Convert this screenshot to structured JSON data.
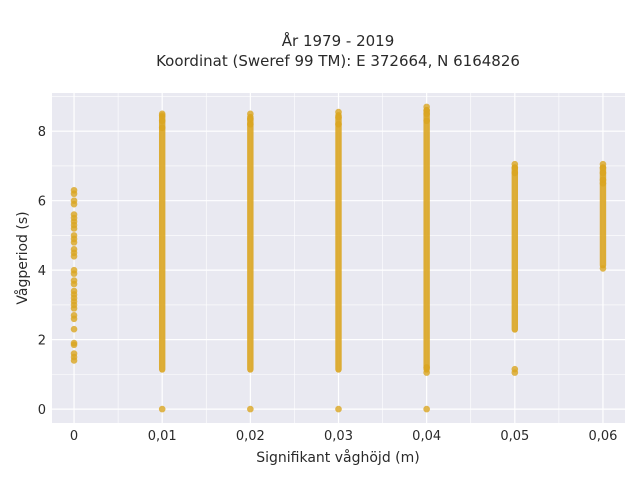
{
  "chart_data": {
    "type": "scatter",
    "title_line1": "År 1979 - 2019",
    "title_line2": "Koordinat (Sweref 99 TM): E 372664, N 6164826",
    "xlabel": "Signifikant våghöjd (m)",
    "ylabel": "Vågperiod (s)",
    "xlim": [
      -0.0025,
      0.0625
    ],
    "ylim": [
      -0.4,
      9.1
    ],
    "x_ticks": [
      {
        "value": 0,
        "label": "0"
      },
      {
        "value": 0.01,
        "label": "0,01"
      },
      {
        "value": 0.02,
        "label": "0,02"
      },
      {
        "value": 0.03,
        "label": "0,03"
      },
      {
        "value": 0.04,
        "label": "0,04"
      },
      {
        "value": 0.05,
        "label": "0,05"
      },
      {
        "value": 0.06,
        "label": "0,06"
      }
    ],
    "y_ticks": [
      {
        "value": 0,
        "label": "0"
      },
      {
        "value": 2,
        "label": "2"
      },
      {
        "value": 4,
        "label": "4"
      },
      {
        "value": 6,
        "label": "6"
      },
      {
        "value": 8,
        "label": "8"
      }
    ],
    "grid": true,
    "marker_color": "#DAA520",
    "background_color": "#E9E9F1",
    "clusters": [
      {
        "x": 0,
        "y_min": 1.4,
        "y_max": 6.3,
        "dense": false,
        "points": [
          1.4,
          1.5,
          1.6,
          1.85,
          1.9,
          2.3,
          2.6,
          2.7,
          2.9,
          3.0,
          3.1,
          3.2,
          3.3,
          3.4,
          3.6,
          3.7,
          3.9,
          4.0,
          4.4,
          4.5,
          4.6,
          4.8,
          4.9,
          5.0,
          5.2,
          5.3,
          5.4,
          5.5,
          5.6,
          5.9,
          6.0,
          6.2,
          6.3
        ]
      },
      {
        "x": 0.01,
        "y_min": 1.05,
        "y_max": 8.5,
        "dense": true,
        "points": [
          0,
          8.1,
          8.3,
          8.45,
          8.5
        ]
      },
      {
        "x": 0.02,
        "y_min": 1.05,
        "y_max": 8.5,
        "dense": true,
        "points": [
          0,
          8.2,
          8.35,
          8.5
        ]
      },
      {
        "x": 0.03,
        "y_min": 1.05,
        "y_max": 8.55,
        "dense": true,
        "points": [
          0,
          8.2,
          8.4,
          8.55
        ]
      },
      {
        "x": 0.04,
        "y_min": 1.05,
        "y_max": 8.7,
        "dense": true,
        "points": [
          0,
          1.05,
          1.2,
          8.3,
          8.5,
          8.6,
          8.7
        ]
      },
      {
        "x": 0.05,
        "y_min": 2.2,
        "y_max": 7.05,
        "dense": true,
        "points": [
          1.05,
          1.15,
          6.8,
          6.95,
          7.05
        ]
      },
      {
        "x": 0.06,
        "y_min": 4.05,
        "y_max": 7.05,
        "dense": true,
        "points": [
          4.05,
          6.5,
          6.6,
          6.8,
          6.95,
          7.05
        ]
      }
    ]
  }
}
